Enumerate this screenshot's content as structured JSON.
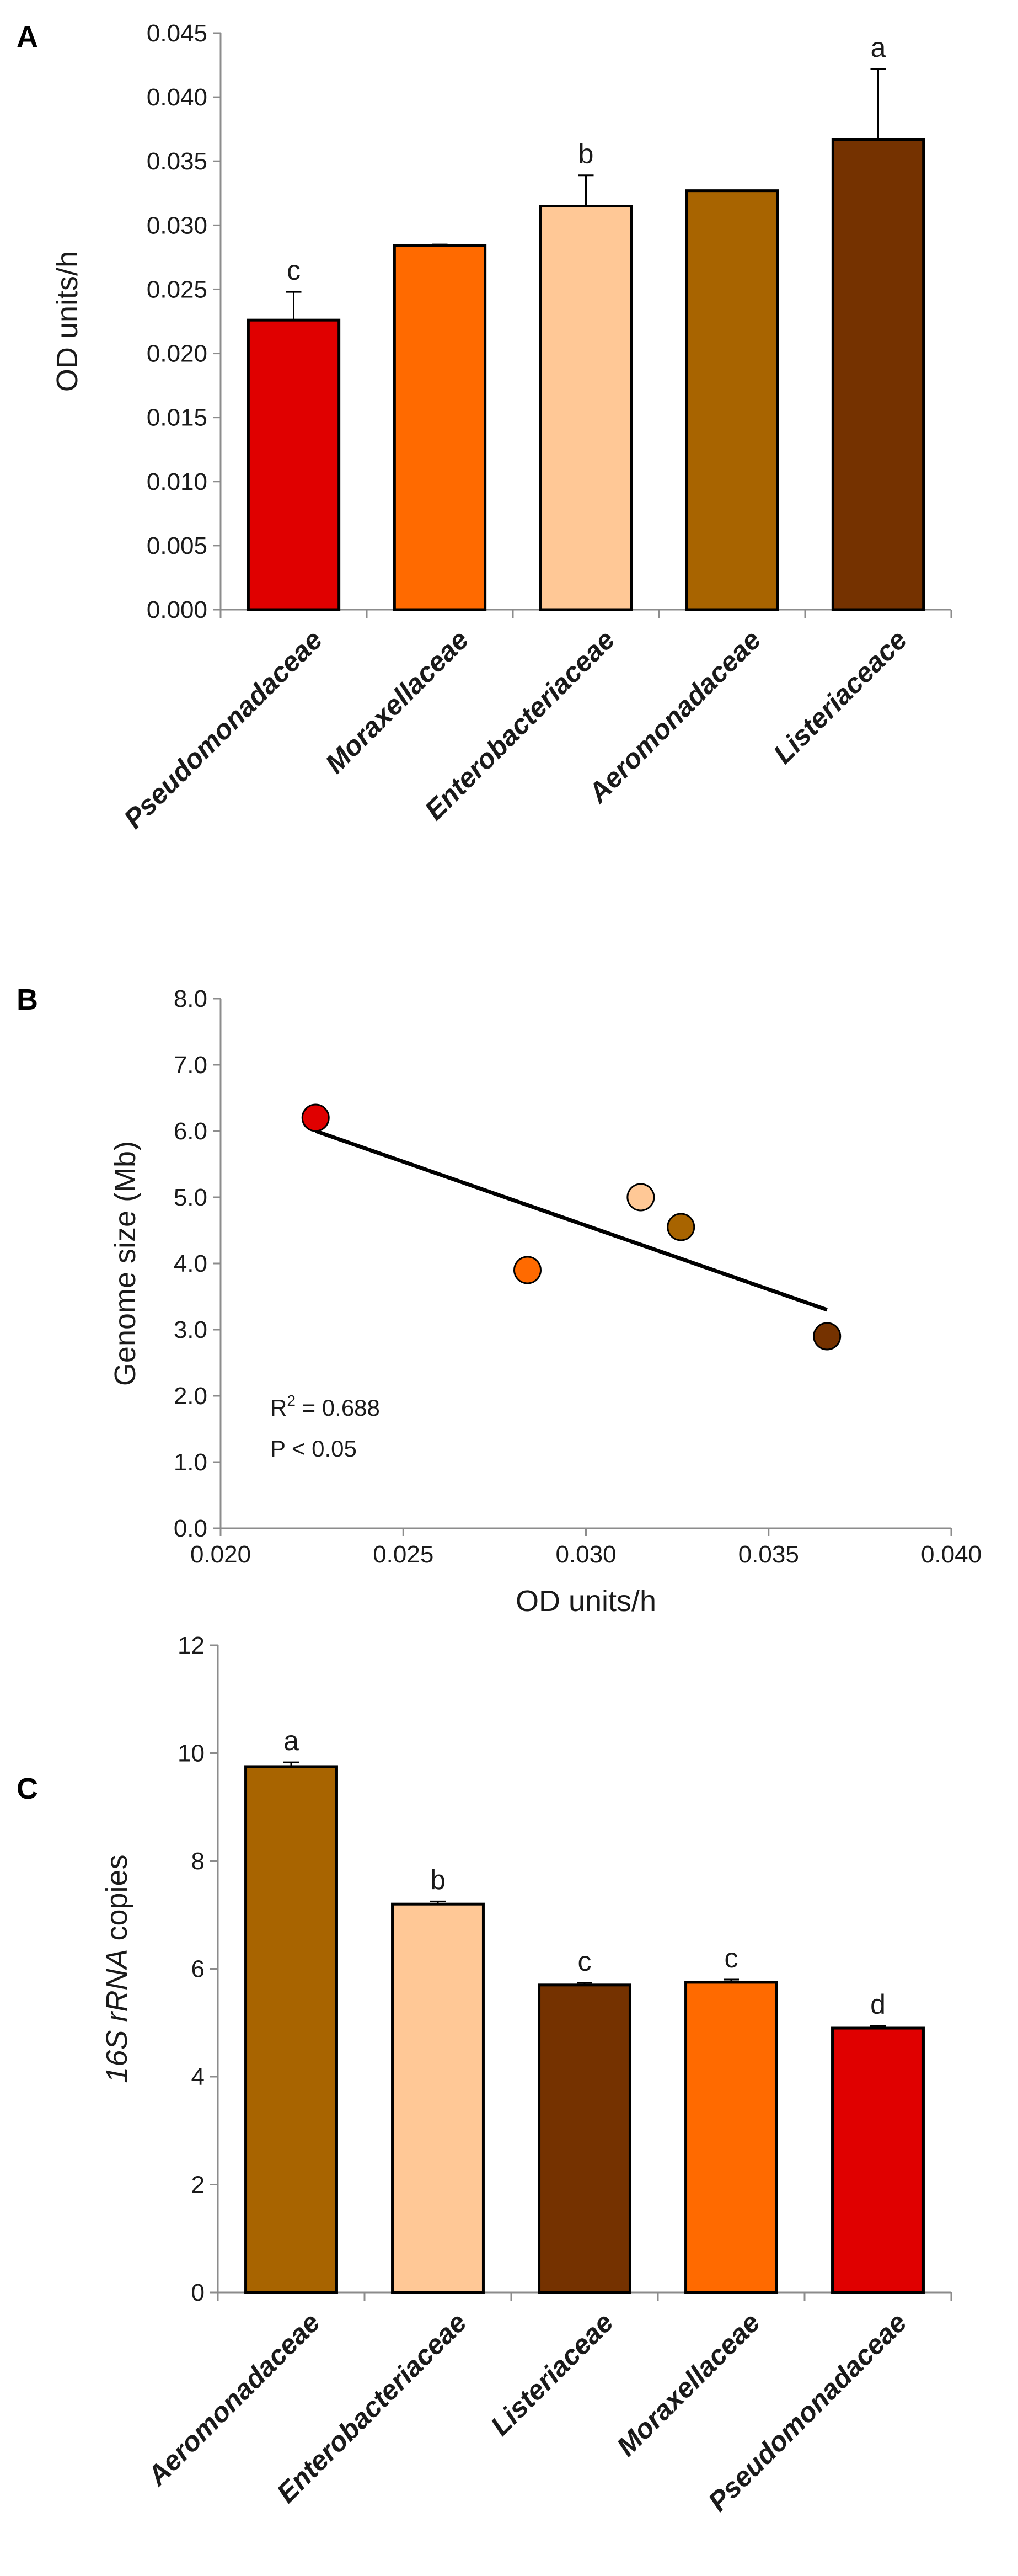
{
  "chart_data": [
    {
      "panel": "A",
      "type": "bar",
      "ylabel": "OD units/h",
      "ylim": [
        0,
        0.045
      ],
      "yticks": [
        "0.000",
        "0.005",
        "0.010",
        "0.015",
        "0.020",
        "0.025",
        "0.030",
        "0.035",
        "0.040",
        "0.045"
      ],
      "categories": [
        "Pseudomonadaceae",
        "Moraxellaceae",
        "Enterobacteriaceae",
        "Aeromonadaceae",
        "Listeriaceace"
      ],
      "values": [
        0.0226,
        0.0284,
        0.0315,
        0.0327,
        0.0367
      ],
      "errors": [
        0.0022,
        0.0001,
        0.0024,
        0.0,
        0.0055
      ],
      "colors": [
        "#e00000",
        "#ff6a00",
        "#ffc896",
        "#a86400",
        "#753200"
      ],
      "labels": [
        "c",
        "",
        "b",
        "",
        "a"
      ]
    },
    {
      "panel": "B",
      "type": "scatter",
      "xlabel": "OD units/h",
      "ylabel": "Genome size (Mb)",
      "xlim": [
        0.02,
        0.04
      ],
      "ylim": [
        0.0,
        8.0
      ],
      "xticks": [
        "0.020",
        "0.025",
        "0.030",
        "0.035",
        "0.040"
      ],
      "yticks": [
        "0.0",
        "1.0",
        "2.0",
        "3.0",
        "4.0",
        "5.0",
        "6.0",
        "7.0",
        "8.0"
      ],
      "points": [
        {
          "x": 0.0226,
          "y": 6.2,
          "color": "#e00000"
        },
        {
          "x": 0.0284,
          "y": 3.9,
          "color": "#ff6a00"
        },
        {
          "x": 0.0315,
          "y": 5.0,
          "color": "#ffc896"
        },
        {
          "x": 0.0326,
          "y": 4.55,
          "color": "#a86400"
        },
        {
          "x": 0.0366,
          "y": 2.9,
          "color": "#753200"
        }
      ],
      "trendline": {
        "x": [
          0.0226,
          0.0366
        ],
        "y": [
          6.0,
          3.3
        ]
      },
      "r2_prefix": "R",
      "r2_sup": "2",
      "r2_value": " = 0.688",
      "p_text": "P < 0.05"
    },
    {
      "panel": "C",
      "type": "bar",
      "ylabel_italic": "16S rRNA",
      "ylabel_rest": " copies",
      "ylim": [
        0,
        12
      ],
      "yticks": [
        "0",
        "2",
        "4",
        "6",
        "8",
        "10",
        "12"
      ],
      "categories": [
        "Aeromonadaceae",
        "Enterobacteriaceae",
        "Listeriaceae",
        "Moraxellaceae",
        "Pseudomonadaceae"
      ],
      "values": [
        9.75,
        7.2,
        5.7,
        5.75,
        4.9
      ],
      "errors": [
        0.08,
        0.05,
        0.04,
        0.05,
        0.04
      ],
      "colors": [
        "#a86400",
        "#ffc896",
        "#753200",
        "#ff6a00",
        "#e00000"
      ],
      "labels": [
        "a",
        "b",
        "c",
        "c",
        "d"
      ]
    }
  ]
}
